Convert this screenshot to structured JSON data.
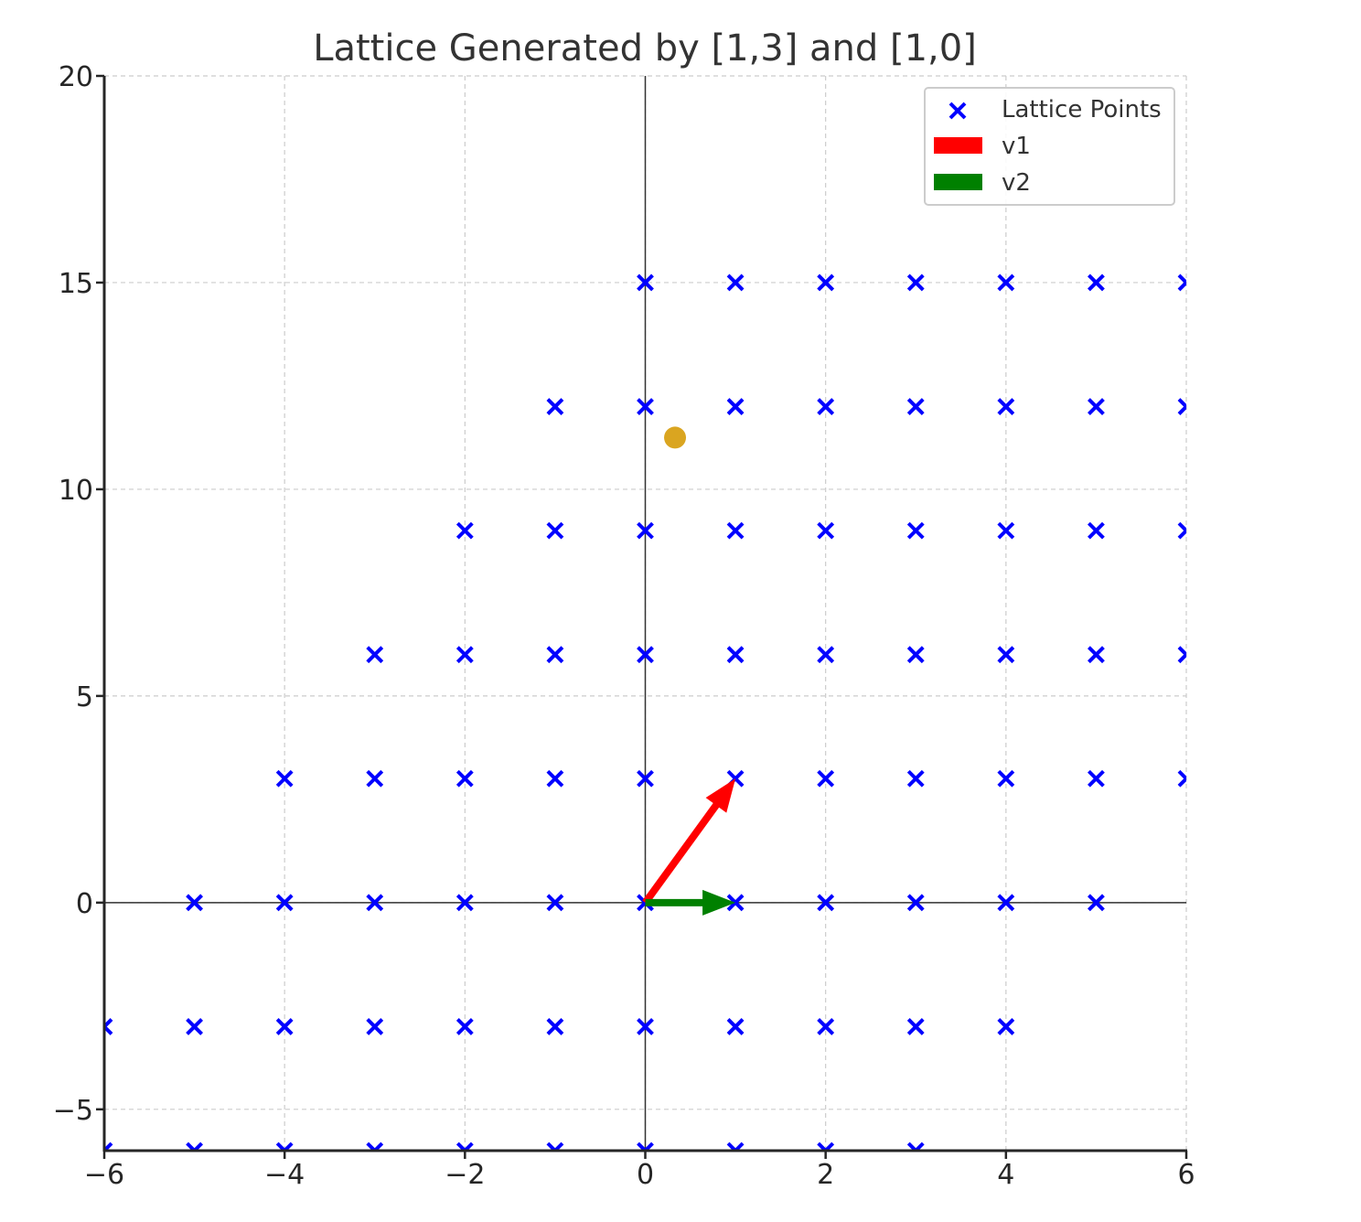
{
  "chart_data": {
    "type": "scatter",
    "title": "Lattice Generated by [1,3] and [1,0]",
    "xlabel": "",
    "ylabel": "",
    "xlim": [
      -6,
      6
    ],
    "ylim": [
      -6,
      20
    ],
    "xticks": [
      -6,
      -4,
      -2,
      0,
      2,
      4,
      6
    ],
    "xtick_labels": [
      "−6",
      "−4",
      "−2",
      "0",
      "2",
      "4",
      "6"
    ],
    "yticks": [
      -5,
      0,
      5,
      10,
      15,
      20
    ],
    "ytick_labels": [
      "−5",
      "0",
      "5",
      "10",
      "15",
      "20"
    ],
    "grid": true,
    "grid_style": "dashed",
    "legend_position": "upper right",
    "basis": {
      "v1": [
        1,
        3
      ],
      "v2": [
        1,
        0
      ]
    },
    "series": [
      {
        "name": "Lattice Points",
        "marker": "x",
        "color": "#0000ff",
        "rows": [
          {
            "y": 15,
            "x": [
              0,
              1,
              2,
              3,
              4,
              5,
              6
            ]
          },
          {
            "y": 12,
            "x": [
              -1,
              0,
              1,
              2,
              3,
              4,
              5,
              6
            ]
          },
          {
            "y": 9,
            "x": [
              -2,
              -1,
              0,
              1,
              2,
              3,
              4,
              5,
              6
            ]
          },
          {
            "y": 6,
            "x": [
              -3,
              -2,
              -1,
              0,
              1,
              2,
              3,
              4,
              5,
              6
            ]
          },
          {
            "y": 3,
            "x": [
              -4,
              -3,
              -2,
              -1,
              0,
              1,
              2,
              3,
              4,
              5,
              6
            ]
          },
          {
            "y": 0,
            "x": [
              -5,
              -4,
              -3,
              -2,
              -1,
              0,
              1,
              2,
              3,
              4,
              5
            ]
          },
          {
            "y": -3,
            "x": [
              -6,
              -5,
              -4,
              -3,
              -2,
              -1,
              0,
              1,
              2,
              3,
              4
            ]
          },
          {
            "y": -6,
            "x": [
              -6,
              -5,
              -4,
              -3,
              -2,
              -1,
              0,
              1,
              2,
              3
            ]
          }
        ]
      },
      {
        "name": "v1",
        "type": "arrow",
        "color": "#ff0000",
        "from": [
          0,
          0
        ],
        "to": [
          1,
          3
        ]
      },
      {
        "name": "v2",
        "type": "arrow",
        "color": "#008000",
        "from": [
          0,
          0
        ],
        "to": [
          1,
          0
        ]
      }
    ],
    "annotations": [
      {
        "type": "point",
        "x": 0.33,
        "y": 11.25,
        "color": "#daa520",
        "label": ""
      }
    ],
    "legend": [
      {
        "label": "Lattice Points",
        "symbol": "x",
        "color": "#0000ff"
      },
      {
        "label": "v1",
        "symbol": "patch",
        "color": "#ff0000"
      },
      {
        "label": "v2",
        "symbol": "patch",
        "color": "#008000"
      }
    ]
  }
}
